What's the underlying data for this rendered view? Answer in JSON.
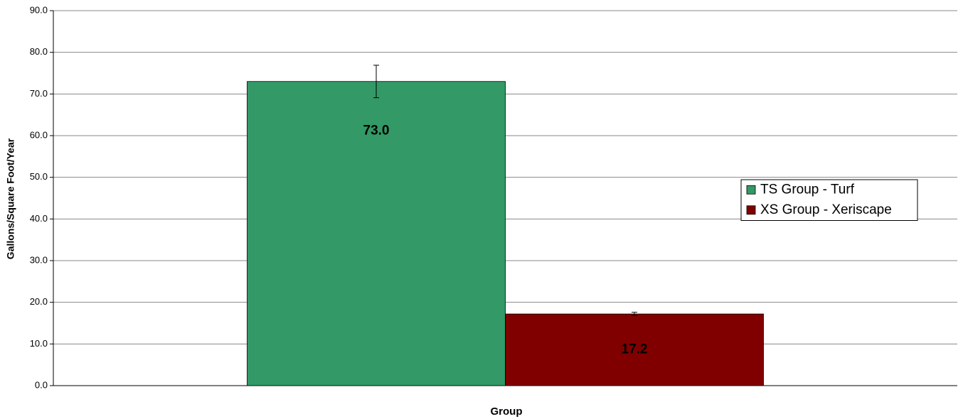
{
  "chart_data": {
    "type": "bar",
    "y_label": "Gallons/Square Foot/Year",
    "x_label": "Group",
    "categories": [
      null
    ],
    "series": [
      {
        "name": "TS Group - Turf",
        "color": "#339966",
        "values": [
          73.0
        ],
        "value_labels": [
          "73.0"
        ],
        "errors": [
          3.9
        ]
      },
      {
        "name": "XS Group - Xeriscape",
        "color": "#800000",
        "values": [
          17.2
        ],
        "value_labels": [
          "17.2"
        ],
        "errors": [
          0.4
        ]
      }
    ],
    "ylim": [
      0,
      90
    ],
    "yticks": [
      {
        "value": 0,
        "label": "0.0"
      },
      {
        "value": 10,
        "label": "10.0"
      },
      {
        "value": 20,
        "label": "20.0"
      },
      {
        "value": 30,
        "label": "30.0"
      },
      {
        "value": 40,
        "label": "40.0"
      },
      {
        "value": 50,
        "label": "50.0"
      },
      {
        "value": 60,
        "label": "60.0"
      },
      {
        "value": 70,
        "label": "70.0"
      },
      {
        "value": 80,
        "label": "80.0"
      },
      {
        "value": 90,
        "label": "90.0"
      }
    ],
    "grid": true,
    "legend": "right"
  }
}
